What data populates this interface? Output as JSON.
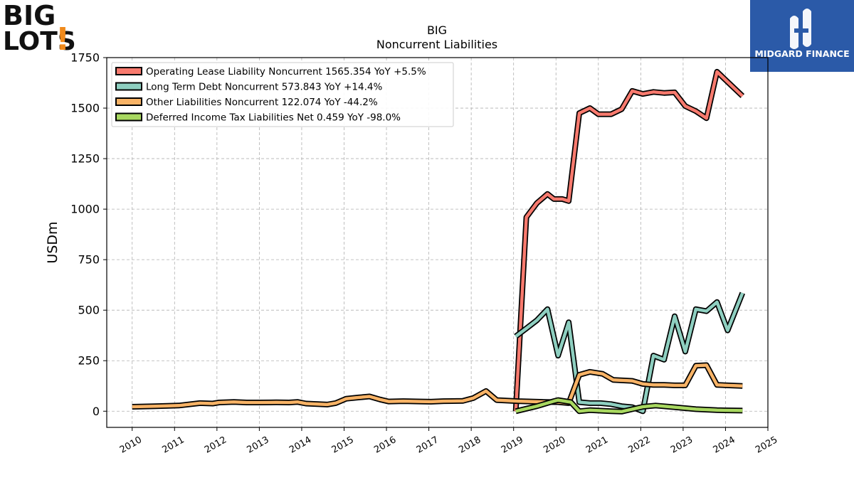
{
  "brand": {
    "left_logo_line1": "BIG",
    "left_logo_line2": "LOTS",
    "left_logo_mark": "!",
    "right_logo_name": "MIDGARD FINANCE",
    "right_logo_bg": "#2b5aa8",
    "left_logo_accent": "#f08a1c"
  },
  "chart_data": {
    "type": "line",
    "title": "BIG",
    "subtitle": "Noncurrent  Liabilities",
    "xlabel": "",
    "ylabel": "USDm",
    "xlim": [
      2009.4,
      2025.0
    ],
    "ylim": [
      -80,
      1750
    ],
    "yticks": [
      0,
      250,
      500,
      750,
      1000,
      1250,
      1500,
      1750
    ],
    "xticks": [
      "2010",
      "2011",
      "2012",
      "2013",
      "2014",
      "2015",
      "2016",
      "2017",
      "2018",
      "2019",
      "2020",
      "2021",
      "2022",
      "2023",
      "2024",
      "2025"
    ],
    "grid": true,
    "legend_position": "top-left",
    "series": [
      {
        "name": "Operating Lease Liability Noncurrent",
        "legend_label": "Operating Lease Liability Noncurrent  1565.354 YoY +5.5%",
        "color": "#f87a6e",
        "points": [
          [
            2019.05,
            0
          ],
          [
            2019.3,
            960
          ],
          [
            2019.55,
            1030
          ],
          [
            2019.8,
            1075
          ],
          [
            2019.95,
            1050
          ],
          [
            2020.15,
            1050
          ],
          [
            2020.3,
            1040
          ],
          [
            2020.55,
            1475
          ],
          [
            2020.8,
            1500
          ],
          [
            2021.0,
            1470
          ],
          [
            2021.3,
            1470
          ],
          [
            2021.55,
            1495
          ],
          [
            2021.8,
            1585
          ],
          [
            2022.05,
            1570
          ],
          [
            2022.3,
            1580
          ],
          [
            2022.55,
            1575
          ],
          [
            2022.8,
            1578
          ],
          [
            2023.05,
            1510
          ],
          [
            2023.3,
            1485
          ],
          [
            2023.55,
            1450
          ],
          [
            2023.8,
            1680
          ],
          [
            2024.05,
            1630
          ],
          [
            2024.4,
            1560
          ]
        ]
      },
      {
        "name": "Long Term Debt Noncurrent",
        "legend_label": "Long Term Debt Noncurrent  573.843 YoY +14.4%",
        "color": "#8ecfc0",
        "points": [
          [
            2019.05,
            370
          ],
          [
            2019.3,
            410
          ],
          [
            2019.55,
            450
          ],
          [
            2019.8,
            505
          ],
          [
            2020.05,
            275
          ],
          [
            2020.3,
            440
          ],
          [
            2020.55,
            45
          ],
          [
            2020.8,
            40
          ],
          [
            2021.05,
            40
          ],
          [
            2021.3,
            35
          ],
          [
            2021.55,
            25
          ],
          [
            2021.8,
            20
          ],
          [
            2022.05,
            0
          ],
          [
            2022.3,
            275
          ],
          [
            2022.55,
            255
          ],
          [
            2022.8,
            470
          ],
          [
            2023.05,
            295
          ],
          [
            2023.3,
            505
          ],
          [
            2023.55,
            495
          ],
          [
            2023.8,
            540
          ],
          [
            2024.05,
            400
          ],
          [
            2024.4,
            585
          ]
        ]
      },
      {
        "name": "Other Liabilities Noncurrent",
        "legend_label": "Other Liabilities Noncurrent  122.074 YoY -44.2%",
        "color": "#f8b366",
        "points": [
          [
            2010.0,
            22
          ],
          [
            2010.55,
            25
          ],
          [
            2011.1,
            28
          ],
          [
            2011.6,
            40
          ],
          [
            2011.9,
            38
          ],
          [
            2012.05,
            43
          ],
          [
            2012.4,
            46
          ],
          [
            2012.7,
            43
          ],
          [
            2013.0,
            43
          ],
          [
            2013.4,
            44
          ],
          [
            2013.7,
            43
          ],
          [
            2013.9,
            46
          ],
          [
            2014.1,
            38
          ],
          [
            2014.6,
            33
          ],
          [
            2014.8,
            40
          ],
          [
            2015.05,
            62
          ],
          [
            2015.35,
            68
          ],
          [
            2015.6,
            73
          ],
          [
            2015.85,
            58
          ],
          [
            2016.05,
            48
          ],
          [
            2016.4,
            50
          ],
          [
            2016.8,
            48
          ],
          [
            2017.05,
            47
          ],
          [
            2017.35,
            50
          ],
          [
            2017.8,
            51
          ],
          [
            2018.05,
            65
          ],
          [
            2018.35,
            100
          ],
          [
            2018.6,
            55
          ],
          [
            2019.1,
            50
          ],
          [
            2019.4,
            48
          ],
          [
            2019.7,
            46
          ],
          [
            2020.05,
            45
          ],
          [
            2020.3,
            40
          ],
          [
            2020.55,
            180
          ],
          [
            2020.8,
            195
          ],
          [
            2021.1,
            185
          ],
          [
            2021.35,
            155
          ],
          [
            2021.8,
            150
          ],
          [
            2022.05,
            135
          ],
          [
            2022.3,
            130
          ],
          [
            2022.55,
            130
          ],
          [
            2022.8,
            128
          ],
          [
            2023.05,
            128
          ],
          [
            2023.3,
            225
          ],
          [
            2023.55,
            228
          ],
          [
            2023.8,
            130
          ],
          [
            2024.4,
            125
          ]
        ]
      },
      {
        "name": "Deferred Income Tax Liabilities Net",
        "legend_label": "Deferred Income Tax Liabilities Net  0.459 YoY -98.0%",
        "color": "#a8d860",
        "points": [
          [
            2019.05,
            0
          ],
          [
            2019.55,
            25
          ],
          [
            2019.95,
            50
          ],
          [
            2020.05,
            55
          ],
          [
            2020.35,
            45
          ],
          [
            2020.55,
            0
          ],
          [
            2020.8,
            5
          ],
          [
            2021.3,
            0
          ],
          [
            2021.55,
            -2
          ],
          [
            2021.8,
            10
          ],
          [
            2022.05,
            22
          ],
          [
            2022.35,
            28
          ],
          [
            2022.8,
            20
          ],
          [
            2023.3,
            10
          ],
          [
            2023.8,
            5
          ],
          [
            2024.4,
            3
          ]
        ]
      }
    ]
  }
}
